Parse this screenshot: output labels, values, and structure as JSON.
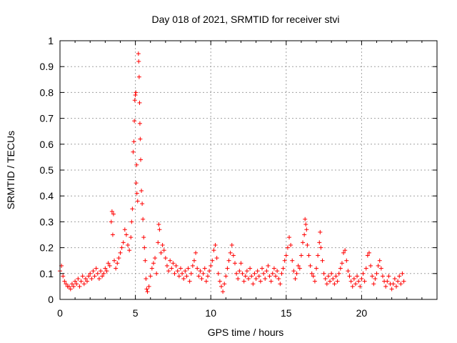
{
  "chart_data": {
    "type": "scatter",
    "title": "Day 018 of 2021, SRMTID for receiver stvi",
    "xlabel": "GPS time / hours",
    "ylabel": "SRMTID / TECUs",
    "xlim": [
      0,
      25
    ],
    "ylim": [
      0,
      1
    ],
    "xticks": [
      0,
      5,
      10,
      15,
      20
    ],
    "yticks": [
      0,
      0.1,
      0.2,
      0.3,
      0.4,
      0.5,
      0.6,
      0.7,
      0.8,
      0.9,
      1
    ],
    "xtick_labels": [
      "0",
      "5",
      "10",
      "15",
      "20"
    ],
    "ytick_labels": [
      "0",
      "0.1",
      "0.2",
      "0.3",
      "0.4",
      "0.5",
      "0.6",
      "0.7",
      "0.8",
      "0.9",
      "1"
    ],
    "grid": true,
    "marker": "+",
    "marker_color": "#ff0000",
    "series": [
      {
        "name": "SRMTID",
        "points": [
          [
            0.0,
            0.11
          ],
          [
            0.1,
            0.13
          ],
          [
            0.2,
            0.09
          ],
          [
            0.3,
            0.07
          ],
          [
            0.4,
            0.06
          ],
          [
            0.5,
            0.05
          ],
          [
            0.6,
            0.05
          ],
          [
            0.7,
            0.04
          ],
          [
            0.8,
            0.06
          ],
          [
            0.9,
            0.05
          ],
          [
            1.0,
            0.07
          ],
          [
            1.1,
            0.06
          ],
          [
            1.2,
            0.08
          ],
          [
            1.3,
            0.05
          ],
          [
            1.4,
            0.07
          ],
          [
            1.5,
            0.09
          ],
          [
            1.6,
            0.06
          ],
          [
            1.7,
            0.08
          ],
          [
            1.8,
            0.07
          ],
          [
            1.9,
            0.09
          ],
          [
            2.0,
            0.1
          ],
          [
            2.1,
            0.08
          ],
          [
            2.2,
            0.11
          ],
          [
            2.3,
            0.09
          ],
          [
            2.4,
            0.12
          ],
          [
            2.5,
            0.1
          ],
          [
            2.6,
            0.08
          ],
          [
            2.7,
            0.11
          ],
          [
            2.8,
            0.09
          ],
          [
            2.9,
            0.1
          ],
          [
            3.0,
            0.12
          ],
          [
            3.1,
            0.11
          ],
          [
            3.2,
            0.14
          ],
          [
            3.3,
            0.13
          ],
          [
            3.4,
            0.3
          ],
          [
            3.45,
            0.34
          ],
          [
            3.5,
            0.25
          ],
          [
            3.55,
            0.33
          ],
          [
            3.6,
            0.15
          ],
          [
            3.7,
            0.12
          ],
          [
            3.8,
            0.14
          ],
          [
            3.9,
            0.16
          ],
          [
            4.0,
            0.18
          ],
          [
            4.1,
            0.2
          ],
          [
            4.2,
            0.22
          ],
          [
            4.3,
            0.27
          ],
          [
            4.4,
            0.25
          ],
          [
            4.5,
            0.21
          ],
          [
            4.6,
            0.19
          ],
          [
            4.7,
            0.24
          ],
          [
            4.75,
            0.3
          ],
          [
            4.8,
            0.35
          ],
          [
            4.85,
            0.57
          ],
          [
            4.9,
            0.61
          ],
          [
            4.93,
            0.69
          ],
          [
            4.96,
            0.77
          ],
          [
            5.0,
            0.79
          ],
          [
            5.03,
            0.8
          ],
          [
            5.05,
            0.45
          ],
          [
            5.08,
            0.52
          ],
          [
            5.1,
            0.41
          ],
          [
            5.15,
            0.38
          ],
          [
            5.2,
            0.95
          ],
          [
            5.22,
            0.92
          ],
          [
            5.25,
            0.86
          ],
          [
            5.28,
            0.76
          ],
          [
            5.3,
            0.68
          ],
          [
            5.32,
            0.62
          ],
          [
            5.35,
            0.54
          ],
          [
            5.4,
            0.42
          ],
          [
            5.45,
            0.37
          ],
          [
            5.5,
            0.31
          ],
          [
            5.55,
            0.24
          ],
          [
            5.6,
            0.2
          ],
          [
            5.65,
            0.15
          ],
          [
            5.7,
            0.08
          ],
          [
            5.75,
            0.04
          ],
          [
            5.8,
            0.03
          ],
          [
            5.9,
            0.05
          ],
          [
            6.0,
            0.09
          ],
          [
            6.1,
            0.12
          ],
          [
            6.2,
            0.14
          ],
          [
            6.3,
            0.16
          ],
          [
            6.4,
            0.1
          ],
          [
            6.5,
            0.22
          ],
          [
            6.55,
            0.29
          ],
          [
            6.6,
            0.27
          ],
          [
            6.7,
            0.18
          ],
          [
            6.8,
            0.21
          ],
          [
            6.9,
            0.19
          ],
          [
            7.0,
            0.16
          ],
          [
            7.1,
            0.13
          ],
          [
            7.2,
            0.11
          ],
          [
            7.3,
            0.15
          ],
          [
            7.4,
            0.12
          ],
          [
            7.5,
            0.14
          ],
          [
            7.6,
            0.1
          ],
          [
            7.7,
            0.13
          ],
          [
            7.8,
            0.11
          ],
          [
            7.9,
            0.09
          ],
          [
            8.0,
            0.12
          ],
          [
            8.1,
            0.1
          ],
          [
            8.2,
            0.08
          ],
          [
            8.3,
            0.11
          ],
          [
            8.4,
            0.09
          ],
          [
            8.5,
            0.12
          ],
          [
            8.6,
            0.07
          ],
          [
            8.7,
            0.1
          ],
          [
            8.8,
            0.13
          ],
          [
            8.9,
            0.15
          ],
          [
            9.0,
            0.18
          ],
          [
            9.1,
            0.12
          ],
          [
            9.2,
            0.09
          ],
          [
            9.3,
            0.11
          ],
          [
            9.4,
            0.08
          ],
          [
            9.5,
            0.1
          ],
          [
            9.6,
            0.12
          ],
          [
            9.7,
            0.07
          ],
          [
            9.8,
            0.09
          ],
          [
            9.9,
            0.11
          ],
          [
            10.0,
            0.13
          ],
          [
            10.1,
            0.15
          ],
          [
            10.2,
            0.19
          ],
          [
            10.3,
            0.21
          ],
          [
            10.4,
            0.16
          ],
          [
            10.5,
            0.1
          ],
          [
            10.6,
            0.07
          ],
          [
            10.7,
            0.05
          ],
          [
            10.8,
            0.03
          ],
          [
            10.9,
            0.06
          ],
          [
            11.0,
            0.09
          ],
          [
            11.1,
            0.12
          ],
          [
            11.2,
            0.15
          ],
          [
            11.3,
            0.18
          ],
          [
            11.4,
            0.21
          ],
          [
            11.5,
            0.17
          ],
          [
            11.6,
            0.14
          ],
          [
            11.7,
            0.1
          ],
          [
            11.8,
            0.08
          ],
          [
            11.9,
            0.11
          ],
          [
            12.0,
            0.14
          ],
          [
            12.1,
            0.1
          ],
          [
            12.2,
            0.07
          ],
          [
            12.3,
            0.09
          ],
          [
            12.4,
            0.11
          ],
          [
            12.5,
            0.08
          ],
          [
            12.6,
            0.12
          ],
          [
            12.7,
            0.09
          ],
          [
            12.8,
            0.06
          ],
          [
            12.9,
            0.1
          ],
          [
            13.0,
            0.08
          ],
          [
            13.1,
            0.11
          ],
          [
            13.2,
            0.09
          ],
          [
            13.3,
            0.07
          ],
          [
            13.4,
            0.12
          ],
          [
            13.5,
            0.1
          ],
          [
            13.6,
            0.08
          ],
          [
            13.7,
            0.11
          ],
          [
            13.8,
            0.13
          ],
          [
            13.9,
            0.09
          ],
          [
            14.0,
            0.07
          ],
          [
            14.1,
            0.1
          ],
          [
            14.2,
            0.12
          ],
          [
            14.3,
            0.09
          ],
          [
            14.4,
            0.11
          ],
          [
            14.5,
            0.08
          ],
          [
            14.6,
            0.06
          ],
          [
            14.7,
            0.1
          ],
          [
            14.8,
            0.12
          ],
          [
            14.9,
            0.15
          ],
          [
            15.0,
            0.17
          ],
          [
            15.1,
            0.2
          ],
          [
            15.2,
            0.24
          ],
          [
            15.3,
            0.21
          ],
          [
            15.4,
            0.15
          ],
          [
            15.5,
            0.11
          ],
          [
            15.6,
            0.08
          ],
          [
            15.7,
            0.1
          ],
          [
            15.8,
            0.13
          ],
          [
            15.9,
            0.12
          ],
          [
            16.0,
            0.17
          ],
          [
            16.1,
            0.22
          ],
          [
            16.2,
            0.25
          ],
          [
            16.25,
            0.31
          ],
          [
            16.3,
            0.29
          ],
          [
            16.35,
            0.27
          ],
          [
            16.4,
            0.21
          ],
          [
            16.5,
            0.17
          ],
          [
            16.6,
            0.13
          ],
          [
            16.7,
            0.1
          ],
          [
            16.8,
            0.09
          ],
          [
            16.9,
            0.07
          ],
          [
            17.0,
            0.12
          ],
          [
            17.1,
            0.17
          ],
          [
            17.2,
            0.22
          ],
          [
            17.25,
            0.26
          ],
          [
            17.3,
            0.2
          ],
          [
            17.4,
            0.15
          ],
          [
            17.5,
            0.1
          ],
          [
            17.6,
            0.08
          ],
          [
            17.7,
            0.06
          ],
          [
            17.8,
            0.09
          ],
          [
            17.9,
            0.07
          ],
          [
            18.0,
            0.1
          ],
          [
            18.1,
            0.08
          ],
          [
            18.2,
            0.06
          ],
          [
            18.3,
            0.09
          ],
          [
            18.4,
            0.07
          ],
          [
            18.5,
            0.1
          ],
          [
            18.6,
            0.12
          ],
          [
            18.7,
            0.14
          ],
          [
            18.8,
            0.18
          ],
          [
            18.9,
            0.19
          ],
          [
            19.0,
            0.15
          ],
          [
            19.1,
            0.11
          ],
          [
            19.2,
            0.09
          ],
          [
            19.3,
            0.07
          ],
          [
            19.4,
            0.05
          ],
          [
            19.5,
            0.08
          ],
          [
            19.6,
            0.06
          ],
          [
            19.7,
            0.09
          ],
          [
            19.8,
            0.07
          ],
          [
            19.9,
            0.05
          ],
          [
            20.0,
            0.08
          ],
          [
            20.1,
            0.1
          ],
          [
            20.2,
            0.07
          ],
          [
            20.3,
            0.12
          ],
          [
            20.4,
            0.17
          ],
          [
            20.5,
            0.18
          ],
          [
            20.6,
            0.13
          ],
          [
            20.7,
            0.09
          ],
          [
            20.8,
            0.06
          ],
          [
            20.9,
            0.08
          ],
          [
            21.0,
            0.1
          ],
          [
            21.1,
            0.13
          ],
          [
            21.2,
            0.15
          ],
          [
            21.3,
            0.12
          ],
          [
            21.4,
            0.09
          ],
          [
            21.5,
            0.07
          ],
          [
            21.6,
            0.05
          ],
          [
            21.7,
            0.07
          ],
          [
            21.8,
            0.09
          ],
          [
            21.9,
            0.06
          ],
          [
            22.0,
            0.04
          ],
          [
            22.1,
            0.06
          ],
          [
            22.2,
            0.08
          ],
          [
            22.3,
            0.05
          ],
          [
            22.4,
            0.07
          ],
          [
            22.5,
            0.09
          ],
          [
            22.6,
            0.06
          ],
          [
            22.7,
            0.1
          ],
          [
            22.8,
            0.07
          ]
        ]
      }
    ]
  }
}
